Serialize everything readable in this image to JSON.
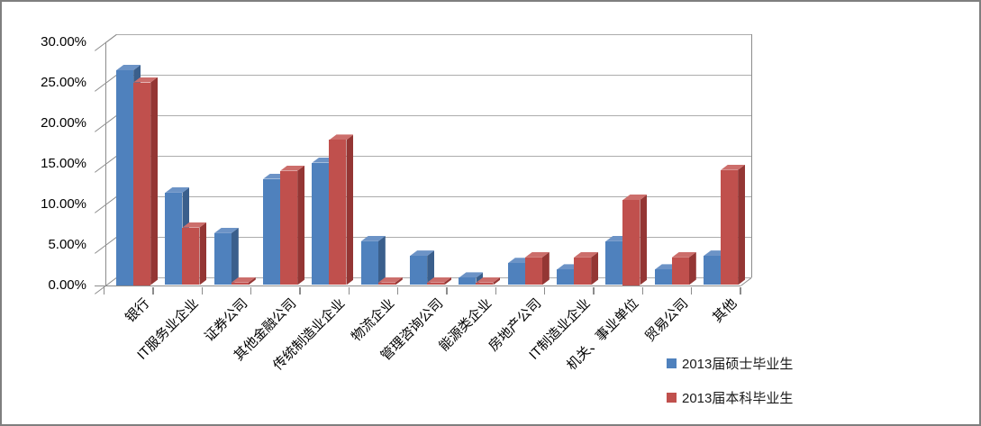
{
  "chart_data": {
    "type": "bar",
    "style": "3d-clustered-column",
    "title": "",
    "xlabel": "",
    "ylabel": "",
    "categories": [
      "银行",
      "IT服务业企业",
      "证券公司",
      "其他金融公司",
      "传统制造业企业",
      "物流企业",
      "管理咨询公司",
      "能源类企业",
      "房地产公司",
      "IT制造业企业",
      "机关、事业单位",
      "贸易公司",
      "其他"
    ],
    "series": [
      {
        "name": "2013届硕士毕业生",
        "color": "#4F81BD",
        "color_top": "#6C93C6",
        "color_side": "#3A5F8C",
        "values": [
          26.5,
          11.4,
          6.4,
          13.1,
          15.1,
          5.4,
          3.6,
          0.9,
          2.7,
          1.9,
          5.4,
          1.9,
          3.6
        ]
      },
      {
        "name": "2013届本科毕业生",
        "color": "#C0504D",
        "color_top": "#CC6E6B",
        "color_side": "#943634",
        "values": [
          25.0,
          7.1,
          0.3,
          14.1,
          17.9,
          0.3,
          0.3,
          0.3,
          3.4,
          3.4,
          10.5,
          3.4,
          14.2
        ]
      }
    ],
    "ylim": [
      0,
      30
    ],
    "ytick_step": 5,
    "ytick_labels": [
      "0.00%",
      "5.00%",
      "10.00%",
      "15.00%",
      "20.00%",
      "25.00%",
      "30.00%"
    ],
    "grid": true,
    "legend_position": "bottom-right"
  },
  "colors": {
    "gridline": "#ACACAC",
    "axis": "#8C8C8C",
    "frame_border": "#7F7F7F",
    "background": "#FFFFFF",
    "text": "#000000"
  }
}
